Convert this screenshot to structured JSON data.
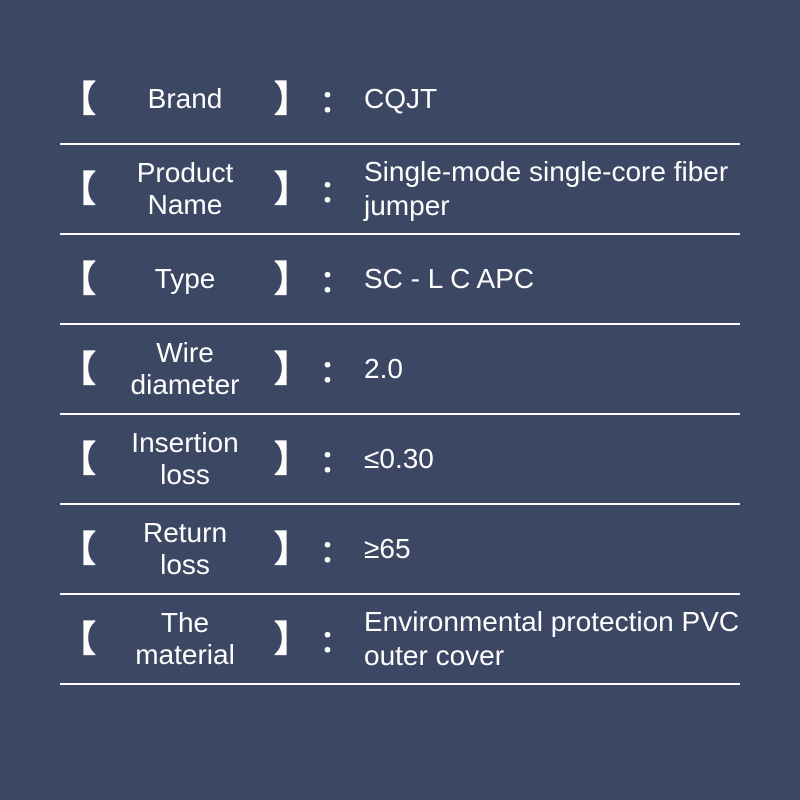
{
  "colors": {
    "background": "#3c4763",
    "text": "#fdfdfd",
    "border": "#fdfdfd"
  },
  "typography": {
    "font_family": "Arial, Helvetica, sans-serif",
    "label_fontsize": 28,
    "value_fontsize": 28,
    "bracket_fontsize": 36
  },
  "brackets": {
    "open": "【",
    "close": "】",
    "colon": "："
  },
  "rows": [
    {
      "label": "Brand",
      "value": "CQJT"
    },
    {
      "label": "Product\nName",
      "value": "Single-mode single-core fiber jumper"
    },
    {
      "label": "Type",
      "value": "SC - L C  APC"
    },
    {
      "label": "Wire diameter",
      "value": "2.0"
    },
    {
      "label": "Insertion loss",
      "value": "≤0.30"
    },
    {
      "label": "Return loss",
      "value": "≥65"
    },
    {
      "label": "The material",
      "value": "Environmental protection PVC outer cover"
    }
  ]
}
